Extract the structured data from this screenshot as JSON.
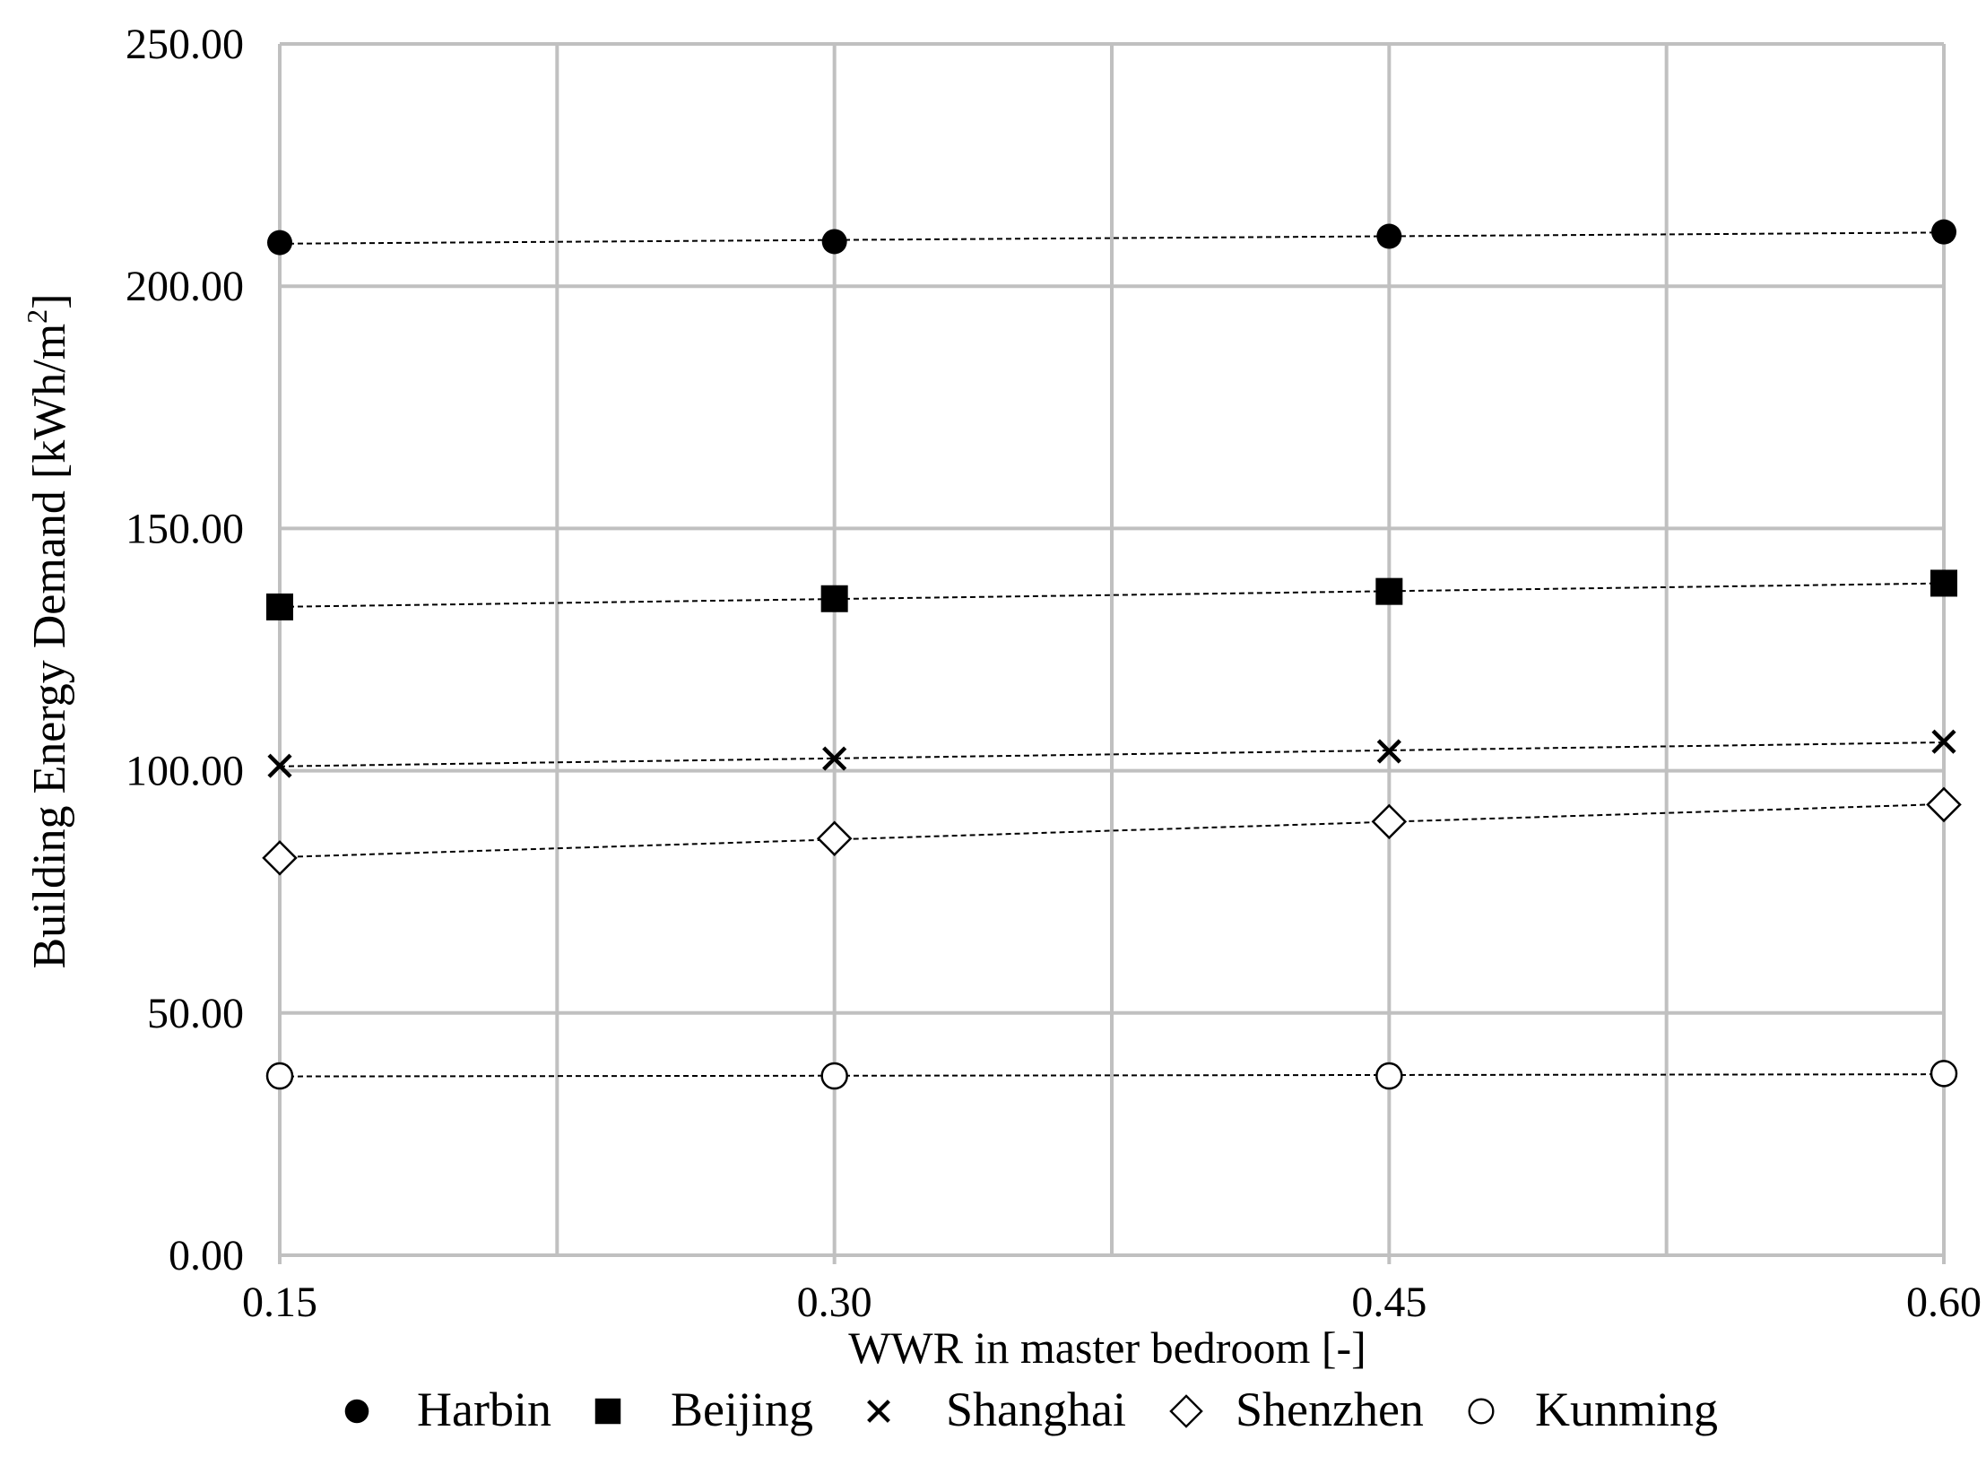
{
  "chart_data": {
    "type": "scatter",
    "x_ticks": [
      "0.15",
      "0.30",
      "0.45",
      "0.60"
    ],
    "y_ticks": [
      "0.00",
      "50.00",
      "100.00",
      "150.00",
      "200.00",
      "250.00"
    ],
    "xlabel": "WWR in master bedroom [-]",
    "ylabel_main": "Building Energy Demand [kWh/m",
    "ylabel_sup": "2",
    "ylabel_end": "]",
    "xlim": [
      0.15,
      0.6
    ],
    "ylim": [
      0,
      250
    ],
    "grid": true,
    "trendlines": "dashed",
    "legend_position": "bottom",
    "x": [
      0.15,
      0.3,
      0.45,
      0.6
    ],
    "series": [
      {
        "name": "Harbin",
        "marker": "filled-circle",
        "values": [
          209.0,
          209.2,
          210.3,
          211.2
        ]
      },
      {
        "name": "Beijing",
        "marker": "filled-square",
        "values": [
          133.8,
          135.5,
          137.0,
          138.7
        ]
      },
      {
        "name": "Shanghai",
        "marker": "x-cross",
        "values": [
          101.0,
          102.5,
          104.0,
          106.0
        ]
      },
      {
        "name": "Shenzhen",
        "marker": "hollow-diamond",
        "values": [
          82.0,
          86.0,
          89.5,
          93.0
        ]
      },
      {
        "name": "Kunming",
        "marker": "hollow-circle",
        "values": [
          37.0,
          37.0,
          37.0,
          37.5
        ]
      }
    ],
    "colors": {
      "grid": "#c0c0c0",
      "marker": "#000000",
      "background": "#ffffff"
    }
  }
}
